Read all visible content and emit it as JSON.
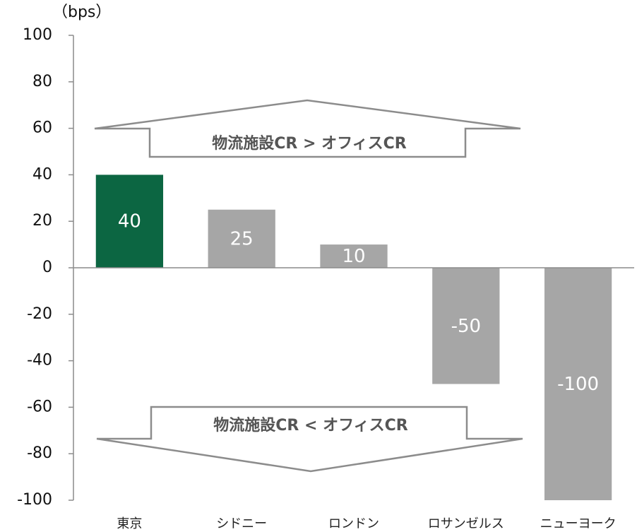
{
  "chart_data": {
    "type": "bar",
    "unit_label": "（bps）",
    "categories": [
      "東京",
      "シドニー",
      "ロンドン",
      "ロサンゼルス",
      "ニューヨーク"
    ],
    "values": [
      40,
      25,
      10,
      -50,
      -100
    ],
    "value_labels": [
      "40",
      "25",
      "10",
      "-50",
      "-100"
    ],
    "ylim": [
      -100,
      100
    ],
    "yticks": [
      100,
      80,
      60,
      40,
      20,
      0,
      -20,
      -40,
      -60,
      -80,
      -100
    ],
    "highlight_index": 0,
    "colors": {
      "highlight": "#0c6642",
      "default": "#a6a6a6"
    },
    "annotations": {
      "upper_arrow": "物流施設CR > オフィスCR",
      "lower_arrow": "物流施設CR < オフィスCR"
    }
  }
}
